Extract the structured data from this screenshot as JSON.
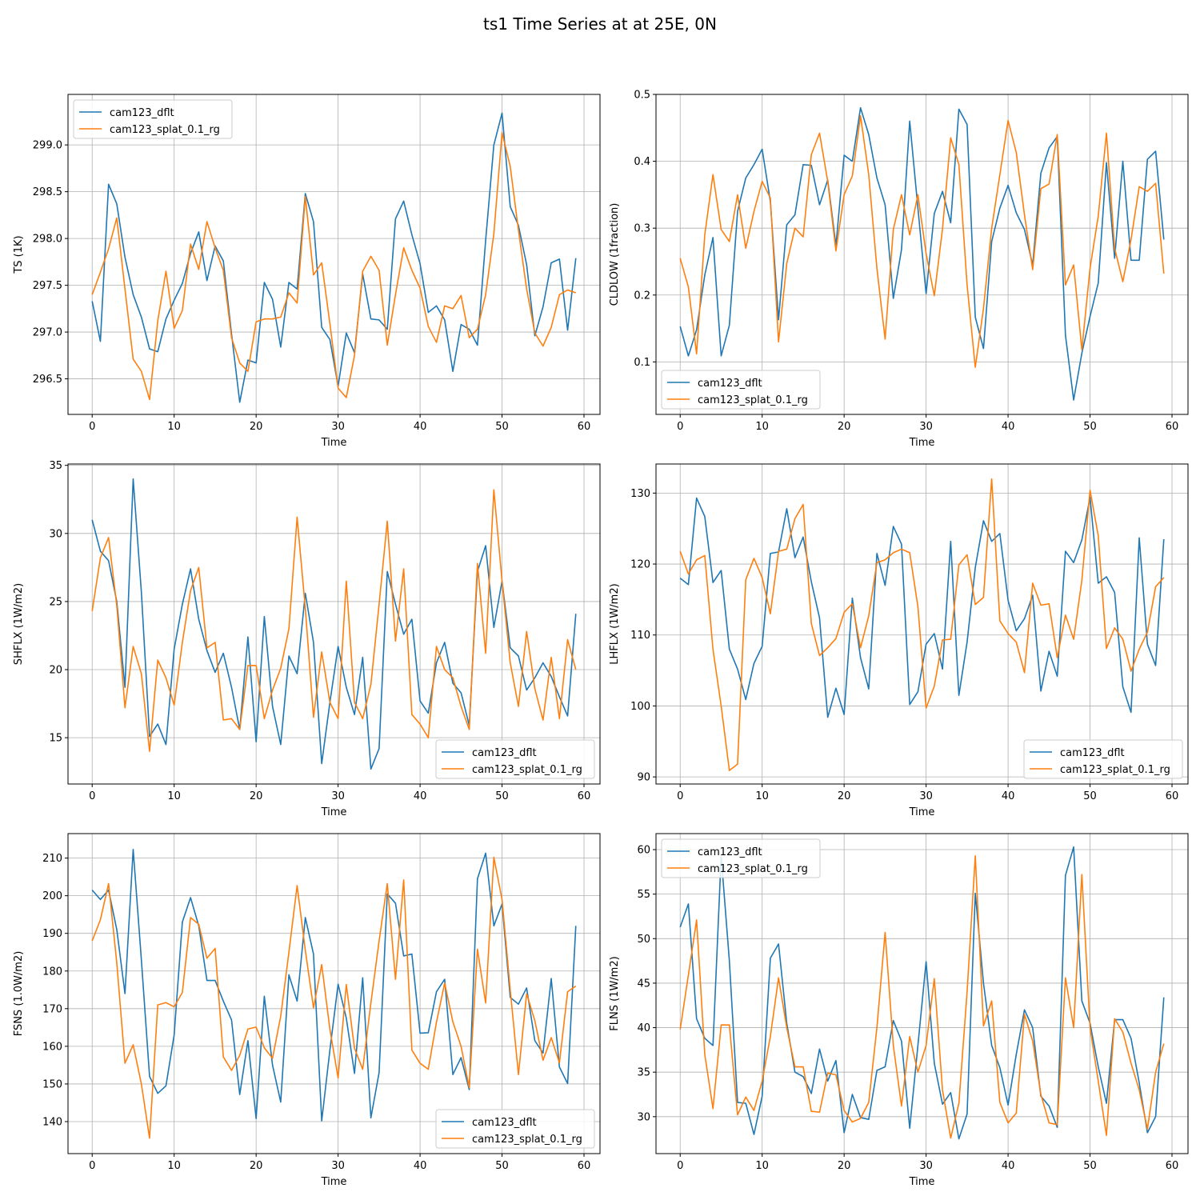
{
  "figure": {
    "title": "ts1 Time Series at at 25E, 0N"
  },
  "colors": {
    "series1": "#1f77b4",
    "series2": "#ff7f0e",
    "grid": "#b0b0b0",
    "axis": "#000000"
  },
  "chart_data": [
    {
      "type": "line",
      "title": "",
      "xlabel": "Time",
      "ylabel": "TS (1K)",
      "xlim": [
        -2.95,
        61.95
      ],
      "ylim": [
        296.12,
        299.54
      ],
      "xticks": [
        0,
        10,
        20,
        30,
        40,
        50,
        60
      ],
      "yticks": [
        296.5,
        297.0,
        297.5,
        298.0,
        298.5,
        299.0
      ],
      "ytick_labels": [
        "296.5",
        "297.0",
        "297.5",
        "298.0",
        "298.5",
        "299.0"
      ],
      "grid": true,
      "legend": "upper left",
      "series": [
        {
          "name": "cam123_dflt",
          "values": [
            297.33,
            296.9,
            298.58,
            298.37,
            297.8,
            297.4,
            297.16,
            296.82,
            296.79,
            297.14,
            297.34,
            297.52,
            297.84,
            298.07,
            297.55,
            297.92,
            297.76,
            296.98,
            296.25,
            296.7,
            296.67,
            297.53,
            297.35,
            296.84,
            297.53,
            297.46,
            298.48,
            298.18,
            297.05,
            296.92,
            296.42,
            296.99,
            296.78,
            297.62,
            297.14,
            297.13,
            297.03,
            298.21,
            298.4,
            298.04,
            297.73,
            297.21,
            297.28,
            297.13,
            296.58,
            297.08,
            297.03,
            296.86,
            297.98,
            299.0,
            299.34,
            298.34,
            298.14,
            297.72,
            296.96,
            297.27,
            297.74,
            297.78,
            297.02,
            297.79
          ]
        },
        {
          "name": "cam123_splat_0.1_rg",
          "values": [
            297.4,
            297.64,
            297.89,
            298.22,
            297.46,
            296.71,
            296.58,
            296.28,
            297.12,
            297.65,
            297.04,
            297.23,
            297.94,
            297.67,
            298.18,
            297.9,
            297.66,
            296.94,
            296.67,
            296.58,
            297.11,
            297.14,
            297.14,
            297.16,
            297.42,
            297.31,
            298.45,
            297.61,
            297.74,
            297.09,
            296.4,
            296.3,
            296.75,
            297.65,
            297.81,
            297.66,
            296.86,
            297.4,
            297.9,
            297.66,
            297.47,
            297.06,
            296.89,
            297.28,
            297.25,
            297.39,
            296.94,
            297.03,
            297.4,
            298.05,
            299.13,
            298.77,
            298.09,
            297.46,
            296.99,
            296.85,
            297.05,
            297.4,
            297.45,
            297.42
          ]
        }
      ]
    },
    {
      "type": "line",
      "title": "",
      "xlabel": "Time",
      "ylabel": "CLDLOW (1fraction)",
      "xlim": [
        -2.95,
        61.95
      ],
      "ylim": [
        0.0215,
        0.5
      ],
      "xticks": [
        0,
        10,
        20,
        30,
        40,
        50,
        60
      ],
      "yticks": [
        0.1,
        0.2,
        0.3,
        0.4,
        0.5
      ],
      "ytick_labels": [
        "0.1",
        "0.2",
        "0.3",
        "0.4",
        "0.5"
      ],
      "grid": true,
      "legend": "lower left",
      "series": [
        {
          "name": "cam123_dflt",
          "values": [
            0.153,
            0.109,
            0.148,
            0.23,
            0.286,
            0.109,
            0.155,
            0.325,
            0.375,
            0.395,
            0.418,
            0.34,
            0.163,
            0.305,
            0.32,
            0.395,
            0.394,
            0.335,
            0.372,
            0.274,
            0.409,
            0.4,
            0.48,
            0.44,
            0.375,
            0.335,
            0.195,
            0.268,
            0.46,
            0.33,
            0.202,
            0.322,
            0.355,
            0.308,
            0.478,
            0.455,
            0.167,
            0.12,
            0.28,
            0.33,
            0.364,
            0.323,
            0.298,
            0.245,
            0.382,
            0.42,
            0.437,
            0.14,
            0.043,
            0.113,
            0.168,
            0.218,
            0.398,
            0.255,
            0.4,
            0.252,
            0.252,
            0.403,
            0.415,
            0.283
          ]
        },
        {
          "name": "cam123_splat_0.1_rg",
          "values": [
            0.255,
            0.212,
            0.112,
            0.29,
            0.38,
            0.298,
            0.28,
            0.35,
            0.27,
            0.325,
            0.37,
            0.345,
            0.13,
            0.247,
            0.3,
            0.287,
            0.41,
            0.442,
            0.37,
            0.266,
            0.35,
            0.378,
            0.468,
            0.38,
            0.24,
            0.134,
            0.298,
            0.35,
            0.29,
            0.35,
            0.262,
            0.199,
            0.299,
            0.435,
            0.395,
            0.215,
            0.092,
            0.18,
            0.3,
            0.38,
            0.461,
            0.413,
            0.32,
            0.238,
            0.359,
            0.366,
            0.44,
            0.215,
            0.245,
            0.118,
            0.24,
            0.318,
            0.442,
            0.27,
            0.22,
            0.283,
            0.362,
            0.355,
            0.367,
            0.232
          ]
        }
      ]
    },
    {
      "type": "line",
      "title": "",
      "xlabel": "Time",
      "ylabel": "SHFLX (1W/m2)",
      "xlim": [
        -2.95,
        61.95
      ],
      "ylim": [
        11.6,
        35.1
      ],
      "xticks": [
        0,
        10,
        20,
        30,
        40,
        50,
        60
      ],
      "yticks": [
        15,
        20,
        25,
        30,
        35
      ],
      "ytick_labels": [
        "15",
        "20",
        "25",
        "30",
        "35"
      ],
      "grid": true,
      "legend": "lower right",
      "series": [
        {
          "name": "cam123_dflt",
          "values": [
            31.0,
            28.7,
            28.0,
            25.0,
            18.7,
            34.0,
            25.7,
            15.1,
            16.0,
            14.5,
            21.5,
            24.8,
            27.4,
            23.7,
            21.4,
            19.8,
            21.2,
            18.7,
            15.6,
            22.4,
            14.7,
            23.9,
            17.3,
            14.5,
            21.0,
            19.7,
            25.6,
            22.0,
            13.1,
            17.6,
            21.7,
            18.7,
            16.7,
            20.9,
            12.7,
            14.2,
            27.2,
            24.8,
            22.6,
            23.7,
            17.7,
            16.8,
            20.5,
            22.0,
            19.0,
            18.3,
            15.9,
            27.2,
            29.1,
            23.1,
            26.5,
            21.6,
            21.0,
            18.5,
            19.4,
            20.5,
            19.5,
            18.0,
            16.6,
            24.1
          ]
        },
        {
          "name": "cam123_splat_0.1_rg",
          "values": [
            24.3,
            28.2,
            29.7,
            24.7,
            17.2,
            21.7,
            19.7,
            14.0,
            20.7,
            19.4,
            17.4,
            22.0,
            25.8,
            27.5,
            21.6,
            22.0,
            16.3,
            16.4,
            15.6,
            20.3,
            20.3,
            16.4,
            18.5,
            20.1,
            23.0,
            31.2,
            24.5,
            16.5,
            21.3,
            17.6,
            16.4,
            26.5,
            17.6,
            16.4,
            18.9,
            24.8,
            30.9,
            22.1,
            27.4,
            16.7,
            16.0,
            15.0,
            21.7,
            20.0,
            19.4,
            17.3,
            15.6,
            27.8,
            21.2,
            33.2,
            26.5,
            20.5,
            17.3,
            22.8,
            18.6,
            16.3,
            20.9,
            16.4,
            22.2,
            20.0
          ]
        }
      ]
    },
    {
      "type": "line",
      "title": "",
      "xlabel": "Time",
      "ylabel": "LHFLX (1W/m2)",
      "xlim": [
        -2.95,
        61.95
      ],
      "ylim": [
        89.0,
        134.1
      ],
      "xticks": [
        0,
        10,
        20,
        30,
        40,
        50,
        60
      ],
      "yticks": [
        90,
        100,
        110,
        120,
        130
      ],
      "ytick_labels": [
        "90",
        "100",
        "110",
        "120",
        "130"
      ],
      "grid": true,
      "legend": "lower right",
      "series": [
        {
          "name": "cam123_dflt",
          "values": [
            118.0,
            117.1,
            129.3,
            126.7,
            117.4,
            119.1,
            108.0,
            105.2,
            100.9,
            106.0,
            108.4,
            121.5,
            121.7,
            127.8,
            120.9,
            123.8,
            117.5,
            112.4,
            98.4,
            102.5,
            98.8,
            115.2,
            106.8,
            102.4,
            121.5,
            117.0,
            125.3,
            122.8,
            100.2,
            102.0,
            108.7,
            110.2,
            105.2,
            123.2,
            101.5,
            109.0,
            119.5,
            126.1,
            123.2,
            124.3,
            114.9,
            110.6,
            112.3,
            115.6,
            102.1,
            107.7,
            104.2,
            121.8,
            120.2,
            123.4,
            129.4,
            117.3,
            118.2,
            116.0,
            102.7,
            99.1,
            123.7,
            108.7,
            105.7,
            123.5
          ]
        },
        {
          "name": "cam123_splat_0.1_rg",
          "values": [
            121.8,
            118.6,
            120.6,
            121.2,
            108.0,
            100.0,
            90.9,
            91.8,
            117.8,
            120.8,
            118.1,
            113.0,
            121.8,
            122.1,
            126.4,
            128.4,
            111.6,
            107.1,
            108.2,
            109.5,
            113.2,
            114.4,
            108.2,
            112.7,
            120.2,
            120.6,
            121.6,
            122.1,
            121.6,
            114.0,
            99.7,
            102.8,
            109.3,
            109.4,
            119.9,
            121.3,
            114.3,
            115.3,
            132.0,
            112.0,
            110.2,
            109.0,
            104.7,
            117.3,
            114.2,
            114.4,
            106.8,
            112.8,
            109.4,
            117.7,
            130.4,
            124.0,
            108.1,
            111.0,
            109.4,
            104.9,
            108.0,
            110.4,
            116.8,
            118.1
          ]
        }
      ]
    },
    {
      "type": "line",
      "title": "",
      "xlabel": "Time",
      "ylabel": "FSNS (1.0W/m2)",
      "xlim": [
        -2.95,
        61.95
      ],
      "ylim": [
        131.5,
        216.5
      ],
      "xticks": [
        0,
        10,
        20,
        30,
        40,
        50,
        60
      ],
      "yticks": [
        140,
        150,
        160,
        170,
        180,
        190,
        200,
        210
      ],
      "ytick_labels": [
        "140",
        "150",
        "160",
        "170",
        "180",
        "190",
        "200",
        "210"
      ],
      "grid": true,
      "legend": "lower right",
      "series": [
        {
          "name": "cam123_dflt",
          "values": [
            201.5,
            199.0,
            201.5,
            191.0,
            174.0,
            212.3,
            183.0,
            152.0,
            147.5,
            149.5,
            163.0,
            193.0,
            199.5,
            192.0,
            177.5,
            177.5,
            172.0,
            167.0,
            147.2,
            161.5,
            140.8,
            173.3,
            155.0,
            145.2,
            179.0,
            172.0,
            194.2,
            184.5,
            140.2,
            159.0,
            176.5,
            167.5,
            152.8,
            178.2,
            141.0,
            153.0,
            200.5,
            198.0,
            184.0,
            184.5,
            163.5,
            163.6,
            174.5,
            177.8,
            152.5,
            157.0,
            148.5,
            204.5,
            211.3,
            192.0,
            197.8,
            173.0,
            171.2,
            175.5,
            161.5,
            158.2,
            178.0,
            154.5,
            150.1,
            192.0
          ]
        },
        {
          "name": "cam123_splat_0.1_rg",
          "values": [
            188.0,
            193.6,
            203.2,
            182.2,
            155.5,
            160.4,
            150.0,
            135.6,
            171.0,
            171.6,
            170.5,
            174.3,
            194.2,
            192.4,
            183.4,
            186.0,
            157.2,
            153.6,
            157.6,
            164.6,
            165.1,
            159.6,
            156.8,
            168.0,
            185.0,
            202.7,
            185.5,
            170.2,
            181.7,
            164.5,
            151.6,
            176.4,
            159.5,
            153.9,
            171.5,
            188.0,
            203.2,
            177.8,
            204.2,
            159.0,
            155.5,
            153.9,
            166.4,
            176.8,
            166.5,
            160.0,
            149.0,
            185.8,
            171.5,
            210.2,
            199.0,
            175.0,
            152.5,
            174.0,
            166.8,
            156.3,
            162.3,
            155.6,
            174.5,
            176.0
          ]
        }
      ]
    },
    {
      "type": "line",
      "title": "",
      "xlabel": "Time",
      "ylabel": "FLNS (1W/m2)",
      "xlim": [
        -2.95,
        61.95
      ],
      "ylim": [
        25.85,
        61.8
      ],
      "xticks": [
        0,
        10,
        20,
        30,
        40,
        50,
        60
      ],
      "yticks": [
        30,
        35,
        40,
        45,
        50,
        55,
        60
      ],
      "ytick_labels": [
        "30",
        "35",
        "40",
        "45",
        "50",
        "55",
        "60"
      ],
      "grid": true,
      "legend": "upper left",
      "series": [
        {
          "name": "cam123_dflt",
          "values": [
            51.3,
            53.9,
            41.0,
            38.8,
            38.0,
            59.3,
            47.5,
            31.6,
            31.5,
            28.0,
            32.3,
            47.8,
            49.4,
            40.5,
            35.0,
            34.5,
            32.6,
            37.6,
            34.0,
            36.3,
            28.2,
            32.5,
            29.9,
            29.7,
            35.2,
            35.6,
            40.8,
            38.5,
            28.7,
            38.0,
            47.4,
            36.0,
            31.4,
            32.7,
            27.5,
            30.3,
            55.1,
            45.0,
            38.0,
            35.5,
            31.3,
            37.0,
            42.0,
            40.0,
            32.3,
            31.2,
            28.8,
            57.1,
            60.3,
            43.0,
            40.5,
            35.6,
            31.5,
            40.9,
            40.9,
            38.8,
            33.8,
            28.2,
            30.0,
            43.4
          ]
        },
        {
          "name": "cam123_splat_0.1_rg",
          "values": [
            39.8,
            45.9,
            52.1,
            37.0,
            30.9,
            40.3,
            40.3,
            30.2,
            32.2,
            30.7,
            34.0,
            39.0,
            45.6,
            40.0,
            35.6,
            35.6,
            30.6,
            30.5,
            34.9,
            34.7,
            30.7,
            29.4,
            29.8,
            31.6,
            40.0,
            50.7,
            38.0,
            31.2,
            39.0,
            35.0,
            38.0,
            45.5,
            33.0,
            27.6,
            31.5,
            44.0,
            59.3,
            40.2,
            43.0,
            31.6,
            29.3,
            30.4,
            41.5,
            38.5,
            32.5,
            29.3,
            29.1,
            45.6,
            40.0,
            57.2,
            40.0,
            34.0,
            27.9,
            41.0,
            39.5,
            36.0,
            33.0,
            28.6,
            35.0,
            38.2
          ]
        }
      ]
    }
  ]
}
